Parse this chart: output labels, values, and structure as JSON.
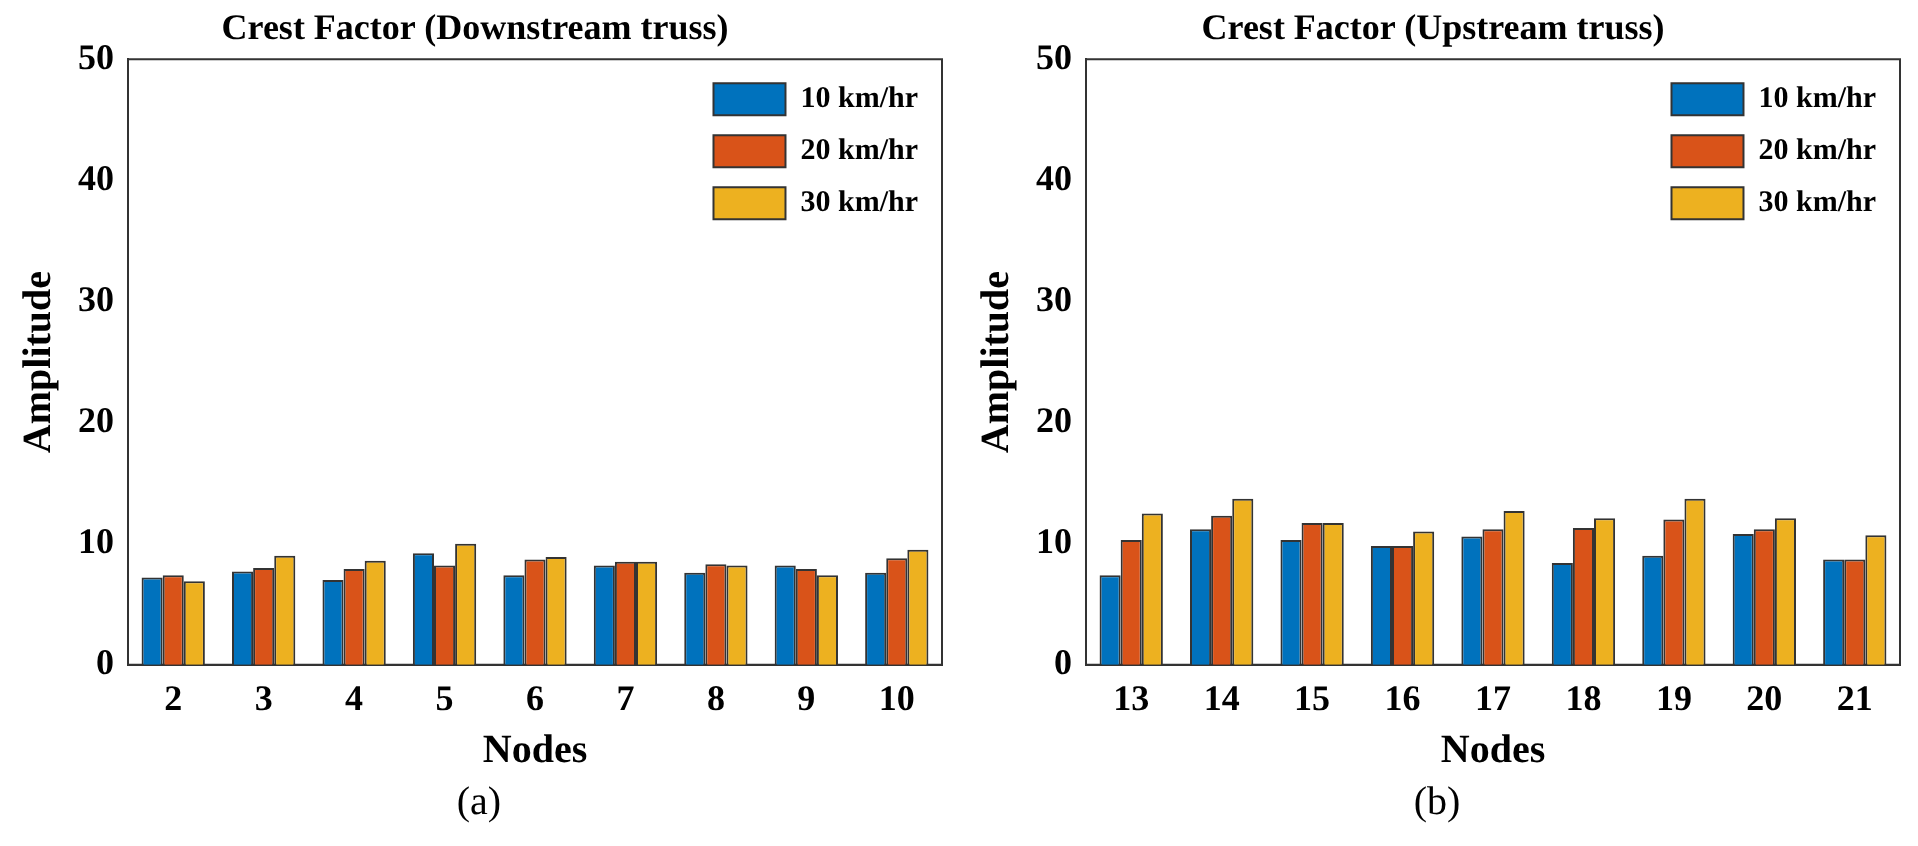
{
  "chart_data": [
    {
      "type": "bar",
      "title": "Crest Factor (Downstream truss)",
      "xlabel": "Nodes",
      "ylabel": "Amplitude",
      "categories": [
        "2",
        "3",
        "4",
        "5",
        "6",
        "7",
        "8",
        "9",
        "10"
      ],
      "ylim": [
        0,
        50
      ],
      "yticks": [
        0,
        10,
        20,
        30,
        40,
        50
      ],
      "grid": false,
      "legend": "top right",
      "annotations": [
        "(a)"
      ],
      "series": [
        {
          "name": "10 km/hr",
          "color": "#0072bd",
          "values": [
            7.2,
            7.7,
            7.0,
            9.2,
            7.4,
            8.2,
            7.6,
            8.2,
            7.6
          ]
        },
        {
          "name": "20 km/hr",
          "color": "#d95319",
          "values": [
            7.4,
            8.0,
            7.9,
            8.2,
            8.7,
            8.5,
            8.3,
            7.9,
            8.8
          ]
        },
        {
          "name": "30 km/hr",
          "color": "#edb120",
          "values": [
            6.9,
            9.0,
            8.6,
            10.0,
            8.9,
            8.5,
            8.2,
            7.4,
            9.5
          ]
        }
      ]
    },
    {
      "type": "bar",
      "title": "Crest Factor (Upstream truss)",
      "xlabel": "Nodes",
      "ylabel": "Amplitude",
      "categories": [
        "13",
        "14",
        "15",
        "16",
        "17",
        "18",
        "19",
        "20",
        "21"
      ],
      "ylim": [
        0,
        50
      ],
      "yticks": [
        0,
        10,
        20,
        30,
        40,
        50
      ],
      "grid": false,
      "legend": "top right",
      "annotations": [
        "(b)"
      ],
      "series": [
        {
          "name": "10 km/hr",
          "color": "#0072bd",
          "values": [
            7.4,
            11.2,
            10.3,
            9.8,
            10.6,
            8.4,
            9.0,
            10.8,
            8.7
          ]
        },
        {
          "name": "20 km/hr",
          "color": "#d95319",
          "values": [
            10.3,
            12.3,
            11.7,
            9.8,
            11.2,
            11.3,
            12.0,
            11.2,
            8.7
          ]
        },
        {
          "name": "30 km/hr",
          "color": "#edb120",
          "values": [
            12.5,
            13.7,
            11.7,
            11.0,
            12.7,
            12.1,
            13.7,
            12.1,
            10.7
          ]
        }
      ]
    }
  ]
}
